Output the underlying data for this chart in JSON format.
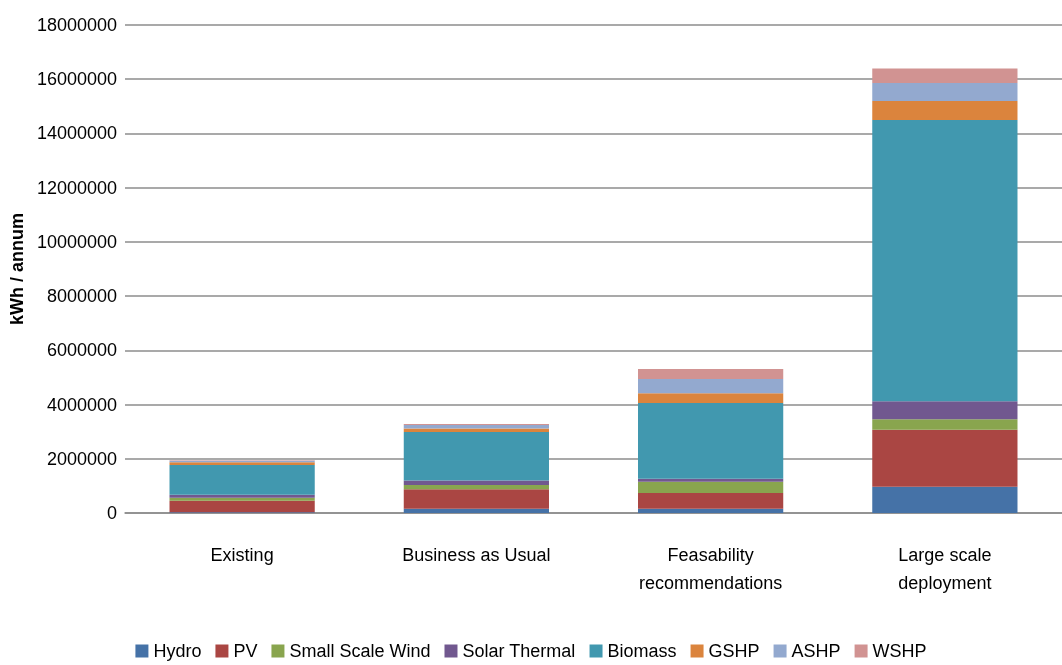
{
  "chart_data": {
    "type": "bar",
    "stacked": true,
    "ylabel": "kWh / annum",
    "categories": [
      "Existing",
      "Business as Usual",
      "Feasability\nrecommendations",
      "Large scale\ndeployment"
    ],
    "series": [
      {
        "name": "Hydro",
        "color": "#4572a7",
        "values": [
          30000,
          160000,
          160000,
          970000
        ]
      },
      {
        "name": "PV",
        "color": "#aa4643",
        "values": [
          420000,
          720000,
          580000,
          2100000
        ]
      },
      {
        "name": "Small Scale Wind",
        "color": "#89a54e",
        "values": [
          110000,
          150000,
          410000,
          390000
        ]
      },
      {
        "name": "Solar Thermal",
        "color": "#71588f",
        "values": [
          110000,
          170000,
          110000,
          660000
        ]
      },
      {
        "name": "Biomass",
        "color": "#4198af",
        "values": [
          1100000,
          1790000,
          2800000,
          10380000
        ]
      },
      {
        "name": "GSHP",
        "color": "#db843d",
        "values": [
          100000,
          130000,
          360000,
          700000
        ]
      },
      {
        "name": "ASHP",
        "color": "#93a9cf",
        "values": [
          60000,
          130000,
          520000,
          660000
        ]
      },
      {
        "name": "WSHP",
        "color": "#d19392",
        "values": [
          20000,
          30000,
          370000,
          540000
        ]
      }
    ],
    "ylim": [
      0,
      18000000
    ],
    "yticks": [
      0,
      2000000,
      4000000,
      6000000,
      8000000,
      10000000,
      12000000,
      14000000,
      16000000,
      18000000
    ],
    "grid": "y",
    "legend": "bottom"
  }
}
